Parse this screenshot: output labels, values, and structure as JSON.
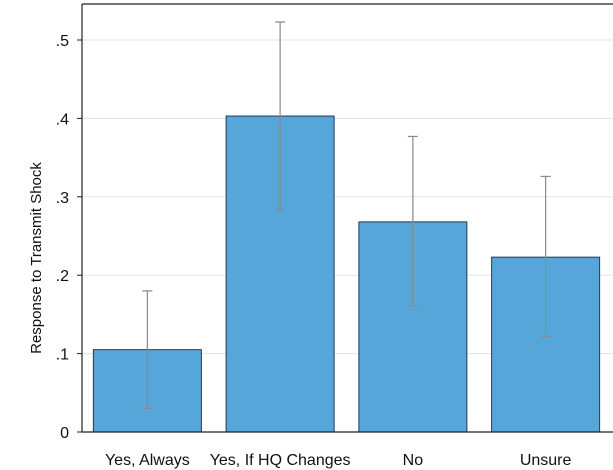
{
  "chart_data": {
    "type": "bar",
    "title": "",
    "xlabel": "",
    "ylabel": "Response to Transmit Shock",
    "categories": [
      "Yes, Always",
      "Yes, If HQ Changes",
      "No",
      "Unsure"
    ],
    "values": [
      0.105,
      0.403,
      0.268,
      0.223
    ],
    "error_bars": [
      {
        "low": 0.03,
        "high": 0.18
      },
      {
        "low": 0.283,
        "high": 0.523
      },
      {
        "low": 0.161,
        "high": 0.377
      },
      {
        "low": 0.122,
        "high": 0.326
      }
    ],
    "ylim": [
      0,
      0.54
    ],
    "yticks": [
      0,
      0.1,
      0.2,
      0.3,
      0.4,
      0.5
    ],
    "ytick_labels": [
      "0",
      ".1",
      ".2",
      ".3",
      ".4",
      ".5"
    ],
    "grid": true,
    "colors": {
      "bar": "#57a6d9",
      "bar_edge": "#1f3a5a",
      "error": "#8a8a8a",
      "grid": "#e3e3e3",
      "axis": "#222222"
    }
  }
}
